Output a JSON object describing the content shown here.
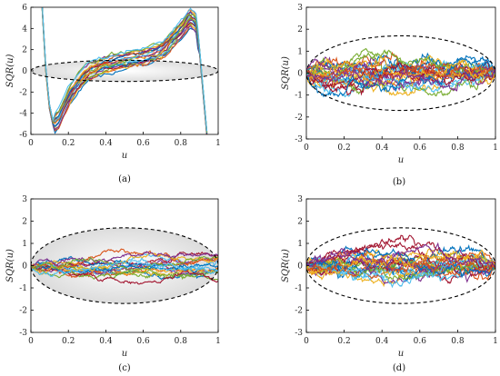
{
  "chart_data": [
    {
      "type": "line",
      "caption": "(a)",
      "xlabel": "u",
      "ylabel": "SQR(u)",
      "xlim": [
        0,
        1
      ],
      "ylim": [
        -6,
        6
      ],
      "xticks": [
        "0",
        "0.2",
        "0.4",
        "0.6",
        "0.8",
        "1"
      ],
      "yticks": [
        "-6",
        "-4",
        "-2",
        "0",
        "2",
        "4",
        "6"
      ],
      "xtick_values": [
        0,
        0.2,
        0.4,
        0.6,
        0.8,
        1
      ],
      "ytick_values": [
        -6,
        -4,
        -2,
        0,
        2,
        4,
        6
      ],
      "ellipse": {
        "cx": 0.5,
        "cy": 0,
        "rx": 0.5,
        "ry": 1.0,
        "filled": true
      },
      "series_count": 20,
      "shape": "cubic",
      "x": [
        0.06,
        0.08,
        0.1,
        0.12,
        0.15,
        0.2,
        0.25,
        0.3,
        0.4,
        0.5,
        0.6,
        0.7,
        0.8,
        0.85,
        0.88,
        0.9,
        0.92,
        0.94
      ],
      "y": [
        6,
        0,
        -3.5,
        -5,
        -4.5,
        -2.5,
        -1.2,
        -0.2,
        0.6,
        1.0,
        1.3,
        2.0,
        3.8,
        5.0,
        4.6,
        2.0,
        -2.0,
        -6
      ]
    },
    {
      "type": "line",
      "caption": "(b)",
      "xlabel": "u",
      "ylabel": "SQR(u)",
      "xlim": [
        0,
        1
      ],
      "ylim": [
        -3,
        3
      ],
      "xticks": [
        "0",
        "0.2",
        "0.4",
        "0.6",
        "0.8",
        "1"
      ],
      "yticks": [
        "-3",
        "-2",
        "-1",
        "0",
        "1",
        "2",
        "3"
      ],
      "xtick_values": [
        0,
        0.2,
        0.4,
        0.6,
        0.8,
        1
      ],
      "ytick_values": [
        -3,
        -2,
        -1,
        0,
        1,
        2,
        3
      ],
      "ellipse": {
        "cx": 0.5,
        "cy": 0,
        "rx": 0.5,
        "ry": 1.7,
        "filled": false
      },
      "series_count": 25,
      "shape": "bridge",
      "amplitude": 1.1
    },
    {
      "type": "line",
      "caption": "(c)",
      "xlabel": "u",
      "ylabel": "SQR(u)",
      "xlim": [
        0,
        1
      ],
      "ylim": [
        -3,
        3
      ],
      "xticks": [
        "0",
        "0.2",
        "0.4",
        "0.6",
        "0.8",
        "1"
      ],
      "yticks": [
        "-3",
        "-2",
        "-1",
        "0",
        "1",
        "2",
        "3"
      ],
      "xtick_values": [
        0,
        0.2,
        0.4,
        0.6,
        0.8,
        1
      ],
      "ytick_values": [
        -3,
        -2,
        -1,
        0,
        1,
        2,
        3
      ],
      "ellipse": {
        "cx": 0.5,
        "cy": 0,
        "rx": 0.5,
        "ry": 1.7,
        "filled": true
      },
      "series_count": 20,
      "shape": "drift",
      "amplitude": 0.4
    },
    {
      "type": "line",
      "caption": "(d)",
      "xlabel": "u",
      "ylabel": "SQR(u)",
      "xlim": [
        0,
        1
      ],
      "ylim": [
        -3,
        3
      ],
      "xticks": [
        "0",
        "0.2",
        "0.4",
        "0.6",
        "0.8",
        "1"
      ],
      "yticks": [
        "-3",
        "-2",
        "-1",
        "0",
        "1",
        "2",
        "3"
      ],
      "xtick_values": [
        0,
        0.2,
        0.4,
        0.6,
        0.8,
        1
      ],
      "ytick_values": [
        -3,
        -2,
        -1,
        0,
        1,
        2,
        3
      ],
      "ellipse": {
        "cx": 0.5,
        "cy": 0,
        "rx": 0.5,
        "ry": 1.7,
        "filled": false
      },
      "series_count": 25,
      "shape": "bridge",
      "amplitude": 1.0
    }
  ],
  "colors": [
    "#0072BD",
    "#D95319",
    "#EDB120",
    "#7E2F8E",
    "#77AC30",
    "#4DBEEE",
    "#A2142F"
  ]
}
